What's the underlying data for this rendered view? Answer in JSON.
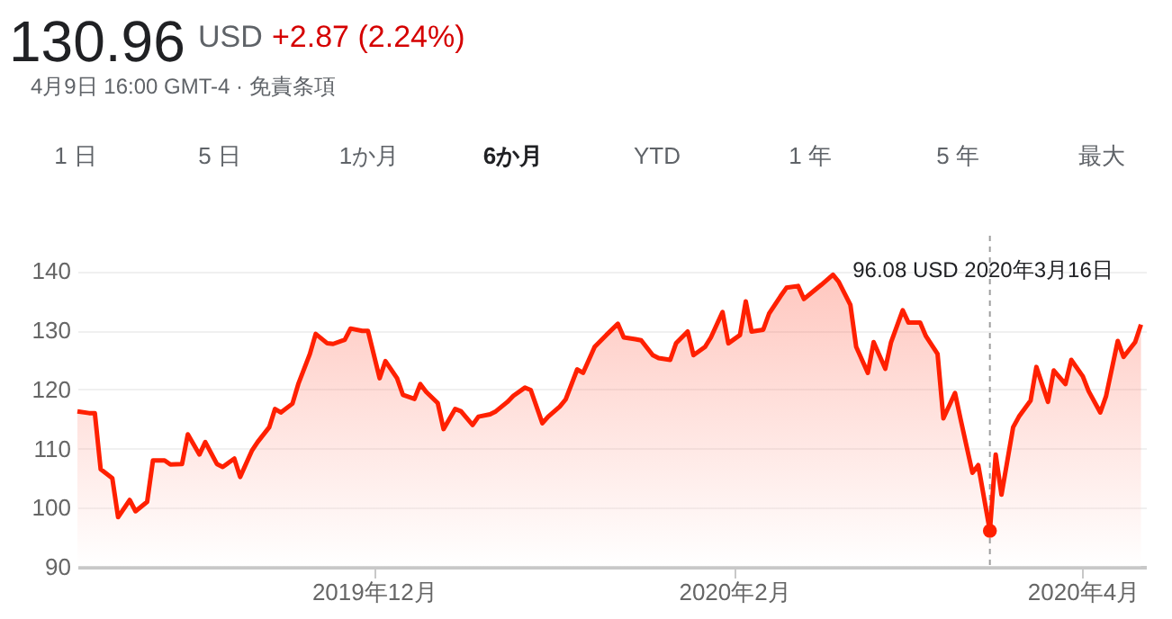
{
  "chart_data": {
    "type": "area",
    "annotations": [
      "130.96",
      "USD",
      "+2.87 (2.24%)",
      "4月9日 16:00 GMT-4 · 免責条項",
      "1 日",
      "5 日",
      "1か月",
      "6か月",
      "YTD",
      "1 年",
      "5 年",
      "最大",
      "96.08 USD  2020年3月16日"
    ],
    "xlim": [
      "2019-10-11",
      "2020-04-12"
    ],
    "xticks": [
      {
        "value": "2019-12-01",
        "label": "2019年12月"
      },
      {
        "value": "2020-02-01",
        "label": "2020年2月"
      },
      {
        "value": "2020-04-01",
        "label": "2020年4月"
      }
    ],
    "ylim": [
      90,
      146
    ],
    "yticks": [
      90,
      100,
      110,
      120,
      130,
      140
    ],
    "grid": "y",
    "ref_lines": [
      {
        "axis": "x",
        "value": "2020-03-16",
        "color": "#9e9e9e",
        "line_style": "dashed"
      }
    ],
    "series": [
      {
        "type": "area",
        "color": "#ff2000",
        "x": [
          "2019-10-11",
          "2019-10-13",
          "2019-10-14",
          "2019-10-15",
          "2019-10-17",
          "2019-10-18",
          "2019-10-20",
          "2019-10-21",
          "2019-10-23",
          "2019-10-24",
          "2019-10-26",
          "2019-10-27",
          "2019-10-29",
          "2019-10-30",
          "2019-11-01",
          "2019-11-02",
          "2019-11-04",
          "2019-11-05",
          "2019-11-07",
          "2019-11-08",
          "2019-11-10",
          "2019-11-11",
          "2019-11-13",
          "2019-11-14",
          "2019-11-15",
          "2019-11-17",
          "2019-11-18",
          "2019-11-20",
          "2019-11-21",
          "2019-11-23",
          "2019-11-24",
          "2019-11-26",
          "2019-11-27",
          "2019-11-29",
          "2019-11-30",
          "2019-12-02",
          "2019-12-03",
          "2019-12-05",
          "2019-12-06",
          "2019-12-08",
          "2019-12-09",
          "2019-12-10",
          "2019-12-12",
          "2019-12-13",
          "2019-12-15",
          "2019-12-16",
          "2019-12-18",
          "2019-12-19",
          "2019-12-21",
          "2019-12-22",
          "2019-12-24",
          "2019-12-25",
          "2019-12-27",
          "2019-12-28",
          "2019-12-30",
          "2019-12-31",
          "2020-01-02",
          "2020-01-03",
          "2020-01-05",
          "2020-01-06",
          "2020-01-08",
          "2020-01-09",
          "2020-01-10",
          "2020-01-12",
          "2020-01-13",
          "2020-01-15",
          "2020-01-16",
          "2020-01-18",
          "2020-01-19",
          "2020-01-21",
          "2020-01-22",
          "2020-01-24",
          "2020-01-25",
          "2020-01-27",
          "2020-01-28",
          "2020-01-30",
          "2020-01-31",
          "2020-02-02",
          "2020-02-03",
          "2020-02-04",
          "2020-02-06",
          "2020-02-07",
          "2020-02-09",
          "2020-02-10",
          "2020-02-12",
          "2020-02-13",
          "2020-02-15",
          "2020-02-16",
          "2020-02-18",
          "2020-02-19",
          "2020-02-21",
          "2020-02-22",
          "2020-02-24",
          "2020-02-25",
          "2020-02-27",
          "2020-02-28",
          "2020-03-01",
          "2020-03-02",
          "2020-03-04",
          "2020-03-05",
          "2020-03-07",
          "2020-03-08",
          "2020-03-10",
          "2020-03-11",
          "2020-03-13",
          "2020-03-14",
          "2020-03-16",
          "2020-03-17",
          "2020-03-18",
          "2020-03-20",
          "2020-03-21",
          "2020-03-23",
          "2020-03-24",
          "2020-03-26",
          "2020-03-27",
          "2020-03-29",
          "2020-03-30",
          "2020-04-01",
          "2020-04-02",
          "2020-04-04",
          "2020-04-05",
          "2020-04-07",
          "2020-04-08",
          "2020-04-10",
          "2020-04-11"
        ],
        "values": [
          116.3,
          116.0,
          116.0,
          106.5,
          105.0,
          98.4,
          101.3,
          99.4,
          101.0,
          108.0,
          108.0,
          107.3,
          107.4,
          112.4,
          109.0,
          111.1,
          107.4,
          106.9,
          108.3,
          105.2,
          109.6,
          111.1,
          113.6,
          116.7,
          116.1,
          117.6,
          120.9,
          126.0,
          129.4,
          127.8,
          127.7,
          128.4,
          130.3,
          129.9,
          129.9,
          121.9,
          124.8,
          121.9,
          119.1,
          118.4,
          120.9,
          119.6,
          117.7,
          113.3,
          116.7,
          116.3,
          114.0,
          115.4,
          115.8,
          116.3,
          117.9,
          118.9,
          120.3,
          119.9,
          114.3,
          115.4,
          117.1,
          118.3,
          123.4,
          122.8,
          127.2,
          128.2,
          129.2,
          131.1,
          128.8,
          128.5,
          128.3,
          125.8,
          125.3,
          125.0,
          127.8,
          129.8,
          125.8,
          127.2,
          128.8,
          133.1,
          127.8,
          129.2,
          134.9,
          129.8,
          130.1,
          132.8,
          135.8,
          137.2,
          137.5,
          135.3,
          136.9,
          137.7,
          139.4,
          138.2,
          134.3,
          127.2,
          122.8,
          128.0,
          123.5,
          128.0,
          133.4,
          131.3,
          131.3,
          129.0,
          126.0,
          115.1,
          119.4,
          114.8,
          105.9,
          107.2,
          96.08,
          109.0,
          102.2,
          113.6,
          115.4,
          118.1,
          123.8,
          117.9,
          123.2,
          120.9,
          125.0,
          122.2,
          119.7,
          116.1,
          118.9,
          128.2,
          125.5,
          128.0,
          130.96
        ]
      },
      {
        "type": "scatter",
        "color": "#ff2000",
        "x": [
          "2020-03-16"
        ],
        "values": [
          96.08
        ]
      }
    ]
  }
}
